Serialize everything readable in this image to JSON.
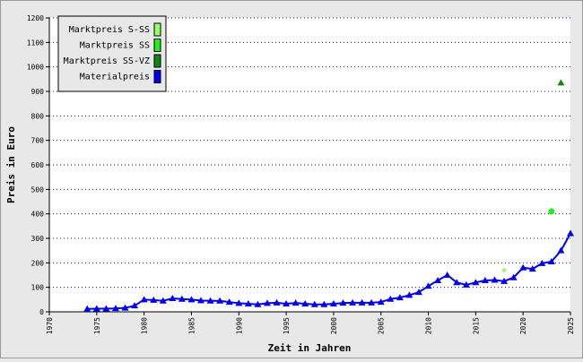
{
  "chart_data": {
    "type": "line",
    "x_label": "Zeit in Jahren",
    "y_label": "Preis in Euro",
    "xlim": [
      1970,
      2025
    ],
    "xticks": [
      1970,
      1975,
      1980,
      1985,
      1990,
      1995,
      2000,
      2005,
      2010,
      2015,
      2020,
      2025
    ],
    "ylim": [
      0,
      1200
    ],
    "yticks": [
      0,
      100,
      200,
      300,
      400,
      500,
      600,
      700,
      800,
      900,
      1000,
      1100,
      1200
    ],
    "grid": true,
    "legend": "top-left",
    "series": [
      {
        "name": "Marktpreis S-SS",
        "color": "#99ff66",
        "marker": "diamond",
        "x": [
          2018
        ],
        "values": [
          170
        ]
      },
      {
        "name": "Marktpreis SS",
        "color": "#22ee22",
        "marker": "circle",
        "x": [
          2023
        ],
        "values": [
          410
        ]
      },
      {
        "name": "Marktpreis SS-VZ",
        "color": "#118811",
        "marker": "triangle",
        "x": [
          2024
        ],
        "values": [
          935
        ]
      },
      {
        "name": "Materialpreis",
        "color": "#0000ee",
        "marker": "triangle",
        "line": true,
        "x": [
          1974,
          1975,
          1976,
          1977,
          1978,
          1979,
          1980,
          1981,
          1982,
          1983,
          1984,
          1985,
          1986,
          1987,
          1988,
          1989,
          1990,
          1991,
          1992,
          1993,
          1994,
          1995,
          1996,
          1997,
          1998,
          1999,
          2000,
          2001,
          2002,
          2003,
          2004,
          2005,
          2006,
          2007,
          2008,
          2009,
          2010,
          2011,
          2012,
          2013,
          2014,
          2015,
          2016,
          2017,
          2018,
          2019,
          2020,
          2021,
          2022,
          2023,
          2024,
          2025
        ],
        "values": [
          12,
          13,
          13,
          14,
          16,
          25,
          50,
          48,
          45,
          55,
          52,
          50,
          46,
          45,
          45,
          40,
          35,
          33,
          30,
          35,
          37,
          33,
          36,
          33,
          30,
          30,
          33,
          36,
          37,
          37,
          37,
          40,
          52,
          58,
          68,
          80,
          105,
          128,
          150,
          120,
          110,
          120,
          128,
          130,
          125,
          140,
          180,
          175,
          198,
          205,
          250,
          320
        ]
      }
    ]
  }
}
